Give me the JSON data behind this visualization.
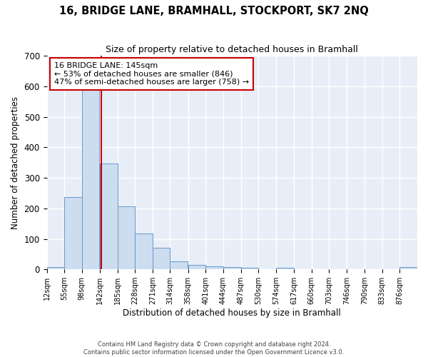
{
  "title": "16, BRIDGE LANE, BRAMHALL, STOCKPORT, SK7 2NQ",
  "subtitle": "Size of property relative to detached houses in Bramhall",
  "xlabel": "Distribution of detached houses by size in Bramhall",
  "ylabel": "Number of detached properties",
  "bar_color": "#ccddef",
  "bar_edge_color": "#6699cc",
  "background_color": "#e8eef8",
  "grid_color": "#ffffff",
  "bin_labels": [
    "12sqm",
    "55sqm",
    "98sqm",
    "142sqm",
    "185sqm",
    "228sqm",
    "271sqm",
    "314sqm",
    "358sqm",
    "401sqm",
    "444sqm",
    "487sqm",
    "530sqm",
    "574sqm",
    "617sqm",
    "660sqm",
    "703sqm",
    "746sqm",
    "790sqm",
    "833sqm",
    "876sqm"
  ],
  "bar_values": [
    8,
    237,
    590,
    348,
    206,
    118,
    72,
    27,
    14,
    10,
    8,
    5,
    0,
    5,
    0,
    0,
    0,
    0,
    0,
    0,
    8
  ],
  "bin_edges": [
    12,
    55,
    98,
    142,
    185,
    228,
    271,
    314,
    358,
    401,
    444,
    487,
    530,
    574,
    617,
    660,
    703,
    746,
    790,
    833,
    876,
    919
  ],
  "vline_x": 145,
  "vline_color": "#cc0000",
  "ylim": [
    0,
    700
  ],
  "yticks": [
    0,
    100,
    200,
    300,
    400,
    500,
    600,
    700
  ],
  "annotation_line1": "16 BRIDGE LANE: 145sqm",
  "annotation_line2": "← 53% of detached houses are smaller (846)",
  "annotation_line3": "47% of semi-detached houses are larger (758) →",
  "annotation_box_color": "#ffffff",
  "annotation_box_edge": "#cc0000",
  "footer_text": "Contains HM Land Registry data © Crown copyright and database right 2024.\nContains public sector information licensed under the Open Government Licence v3.0.",
  "figsize": [
    6.0,
    5.0
  ],
  "dpi": 100
}
